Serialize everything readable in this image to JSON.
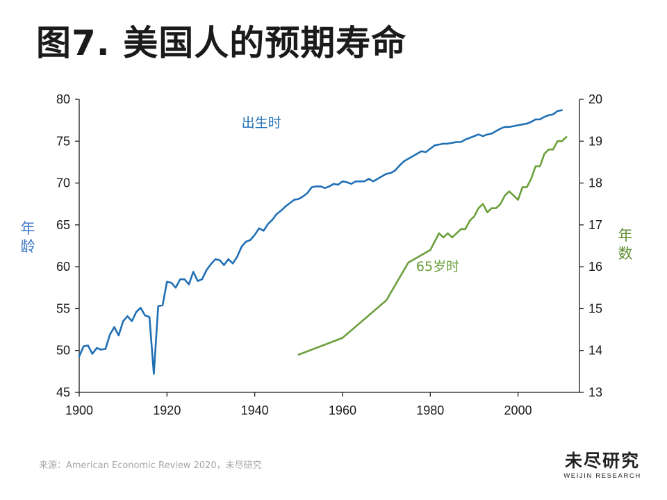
{
  "title": "图7. 美国人的预期寿命",
  "source": "来源：American Economic Review 2020，未尽研究",
  "logo": {
    "main": "未尽研究",
    "sub": "WEIJIN RESEARCH"
  },
  "chart_data": {
    "type": "line",
    "ylabel_left": "年龄",
    "ylabel_right": "年数",
    "x_ticks": [
      1900,
      1920,
      1940,
      1960,
      1980,
      2000
    ],
    "y_left_ticks": [
      45,
      50,
      55,
      60,
      65,
      70,
      75,
      80
    ],
    "y_right_ticks": [
      13,
      14,
      15,
      16,
      17,
      18,
      19,
      20
    ],
    "xlim": [
      1900,
      2014
    ],
    "ylim_left": [
      45,
      80
    ],
    "ylim_right": [
      13,
      20
    ],
    "grid": false,
    "series": [
      {
        "name": "出生时",
        "axis": "left",
        "color": "#1f6fb5",
        "x": [
          1900,
          1901,
          1902,
          1903,
          1904,
          1905,
          1906,
          1907,
          1908,
          1909,
          1910,
          1911,
          1912,
          1913,
          1914,
          1915,
          1916,
          1917,
          1918,
          1919,
          1920,
          1921,
          1922,
          1923,
          1924,
          1925,
          1926,
          1927,
          1928,
          1929,
          1930,
          1931,
          1932,
          1933,
          1934,
          1935,
          1936,
          1937,
          1938,
          1939,
          1940,
          1941,
          1942,
          1943,
          1944,
          1945,
          1946,
          1947,
          1948,
          1949,
          1950,
          1951,
          1952,
          1953,
          1954,
          1955,
          1956,
          1957,
          1958,
          1959,
          1960,
          1961,
          1962,
          1963,
          1964,
          1965,
          1966,
          1967,
          1968,
          1969,
          1970,
          1971,
          1972,
          1973,
          1974,
          1975,
          1976,
          1977,
          1978,
          1979,
          1980,
          1981,
          1982,
          1983,
          1984,
          1985,
          1986,
          1987,
          1988,
          1989,
          1990,
          1991,
          1992,
          1993,
          1994,
          1995,
          1996,
          1997,
          1998,
          1999,
          2000,
          2001,
          2002,
          2003,
          2004,
          2005,
          2006,
          2007,
          2008,
          2009,
          2010
        ],
        "values": [
          49.3,
          50.5,
          50.6,
          49.6,
          50.3,
          50.1,
          50.2,
          51.9,
          52.8,
          51.8,
          53.5,
          54.1,
          53.5,
          54.6,
          55.1,
          54.2,
          54.0,
          47.2,
          55.3,
          55.4,
          58.2,
          58.1,
          57.5,
          58.5,
          58.5,
          57.9,
          59.4,
          58.3,
          58.5,
          59.6,
          60.3,
          60.9,
          60.8,
          60.2,
          60.9,
          60.4,
          61.2,
          62.4,
          63.0,
          63.2,
          63.8,
          64.6,
          64.3,
          65.1,
          65.6,
          66.3,
          66.7,
          67.2,
          67.6,
          68.0,
          68.1,
          68.4,
          68.8,
          69.5,
          69.6,
          69.6,
          69.4,
          69.6,
          69.9,
          69.8,
          70.2,
          70.1,
          69.9,
          70.2,
          70.2,
          70.2,
          70.5,
          70.2,
          70.5,
          70.8,
          71.1,
          71.2,
          71.5,
          72.1,
          72.6,
          72.9,
          73.2,
          73.5,
          73.8,
          73.7,
          74.1,
          74.5,
          74.6,
          74.7,
          74.7,
          74.8,
          74.9,
          74.9,
          75.2,
          75.4,
          75.6,
          75.8,
          75.6,
          75.8,
          75.9,
          76.2,
          76.5,
          76.7,
          76.7,
          76.8,
          76.9,
          77.0,
          77.1,
          77.3,
          77.6,
          77.6,
          77.9,
          78.1,
          78.2,
          78.6,
          78.7
        ]
      },
      {
        "name": "65岁时",
        "axis": "right",
        "color": "#6a9f3a",
        "x": [
          1950,
          1960,
          1970,
          1975,
          1980,
          1981,
          1982,
          1983,
          1984,
          1985,
          1986,
          1987,
          1988,
          1989,
          1990,
          1991,
          1992,
          1993,
          1994,
          1995,
          1996,
          1997,
          1998,
          1999,
          2000,
          2001,
          2002,
          2003,
          2004,
          2005,
          2006,
          2007,
          2008,
          2009,
          2010,
          2011
        ],
        "values": [
          13.9,
          14.3,
          15.2,
          16.1,
          16.4,
          16.6,
          16.8,
          16.7,
          16.8,
          16.7,
          16.8,
          16.9,
          16.9,
          17.1,
          17.2,
          17.4,
          17.5,
          17.3,
          17.4,
          17.4,
          17.5,
          17.7,
          17.8,
          17.7,
          17.6,
          17.9,
          17.9,
          18.1,
          18.4,
          18.4,
          18.7,
          18.8,
          18.8,
          19.0,
          19.0,
          19.1
        ]
      }
    ],
    "annotations": [
      {
        "text": "出生时",
        "x": 1941.5,
        "y": 76.7,
        "axis": "left",
        "series": 0
      },
      {
        "text": "65岁时",
        "x": 1981.7,
        "y": 15.9,
        "axis": "right",
        "series": 1
      }
    ]
  }
}
